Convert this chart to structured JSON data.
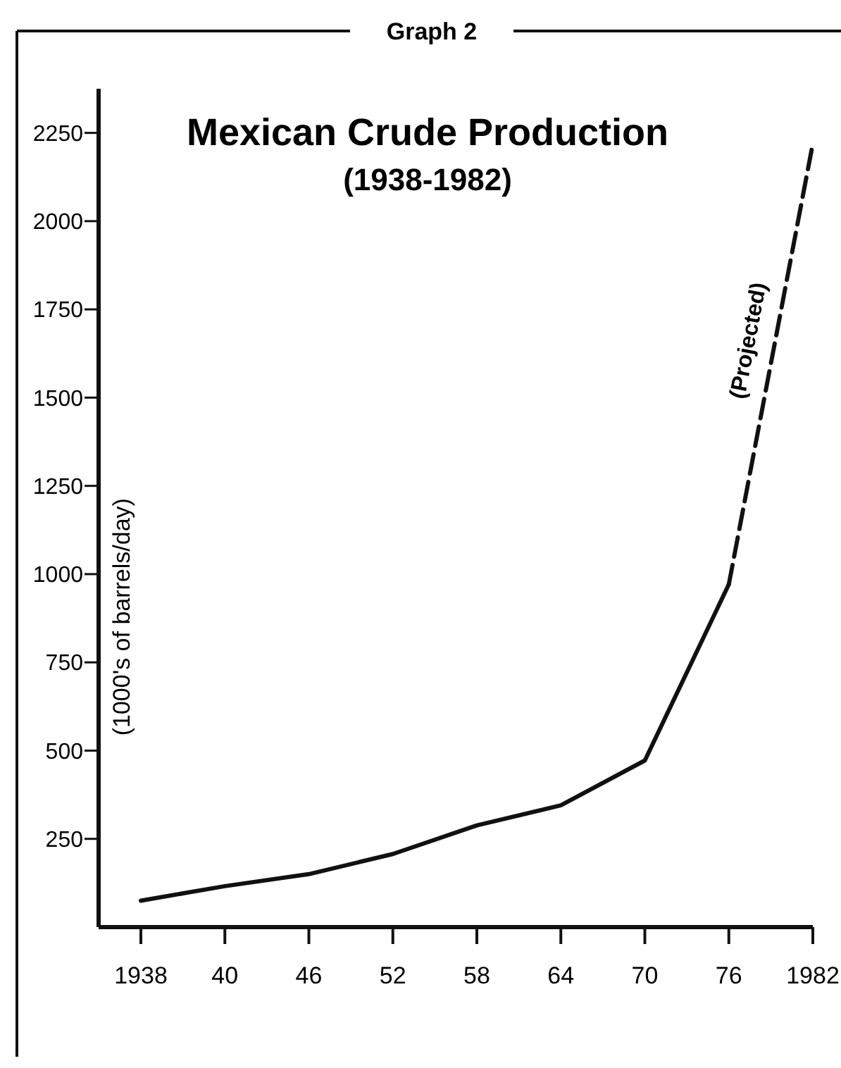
{
  "chart_data": {
    "type": "line",
    "title": "Mexican Crude Production",
    "subtitle": "(1938-1982)",
    "ylabel": "(1000's of barrels/day)",
    "categories": [
      "1938",
      "40",
      "46",
      "52",
      "58",
      "64",
      "70",
      "76",
      "1982"
    ],
    "series": [
      {
        "color": "#111111",
        "line_style": "solid",
        "values": [
          75,
          116,
          150,
          207,
          288,
          345,
          472,
          971,
          null
        ]
      },
      {
        "color": "#111111",
        "line_style": "dashed",
        "values": [
          null,
          null,
          null,
          null,
          null,
          null,
          null,
          971,
          2220
        ]
      }
    ],
    "ylim": [
      0,
      2375
    ],
    "yticks": [
      250,
      500,
      750,
      1000,
      1250,
      1500,
      1750,
      2000,
      2250
    ],
    "annotations": [
      "Graph 2",
      "(Projected)"
    ],
    "marker": "none"
  }
}
